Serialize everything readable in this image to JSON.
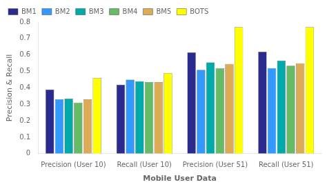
{
  "chart_data": {
    "type": "bar",
    "categories": [
      "Precision (User 10)",
      "Recall (User 10)",
      "Precision (User 51)",
      "Recall (User 51)"
    ],
    "series": [
      {
        "name": "BM1",
        "color": "#2b2b8f",
        "values": [
          0.39,
          0.42,
          0.615,
          0.62
        ]
      },
      {
        "name": "BM2",
        "color": "#3399ff",
        "values": [
          0.33,
          0.45,
          0.51,
          0.52
        ]
      },
      {
        "name": "BM3",
        "color": "#00aaaa",
        "values": [
          0.335,
          0.44,
          0.555,
          0.565
        ]
      },
      {
        "name": "BM4",
        "color": "#66bb66",
        "values": [
          0.31,
          0.435,
          0.52,
          0.535
        ]
      },
      {
        "name": "BM5",
        "color": "#ddaa55",
        "values": [
          0.33,
          0.435,
          0.545,
          0.55
        ]
      },
      {
        "name": "BOTS",
        "color": "#ffff00",
        "values": [
          0.46,
          0.49,
          0.77,
          0.77
        ]
      }
    ],
    "xlabel": "Mobile User Data",
    "ylabel": "Precision & Recall",
    "ylim": [
      0,
      0.8
    ],
    "yticks": [
      0,
      0.1,
      0.2,
      0.3,
      0.4,
      0.5,
      0.6,
      0.7,
      0.8
    ],
    "grid": false,
    "legend": "upper left"
  }
}
